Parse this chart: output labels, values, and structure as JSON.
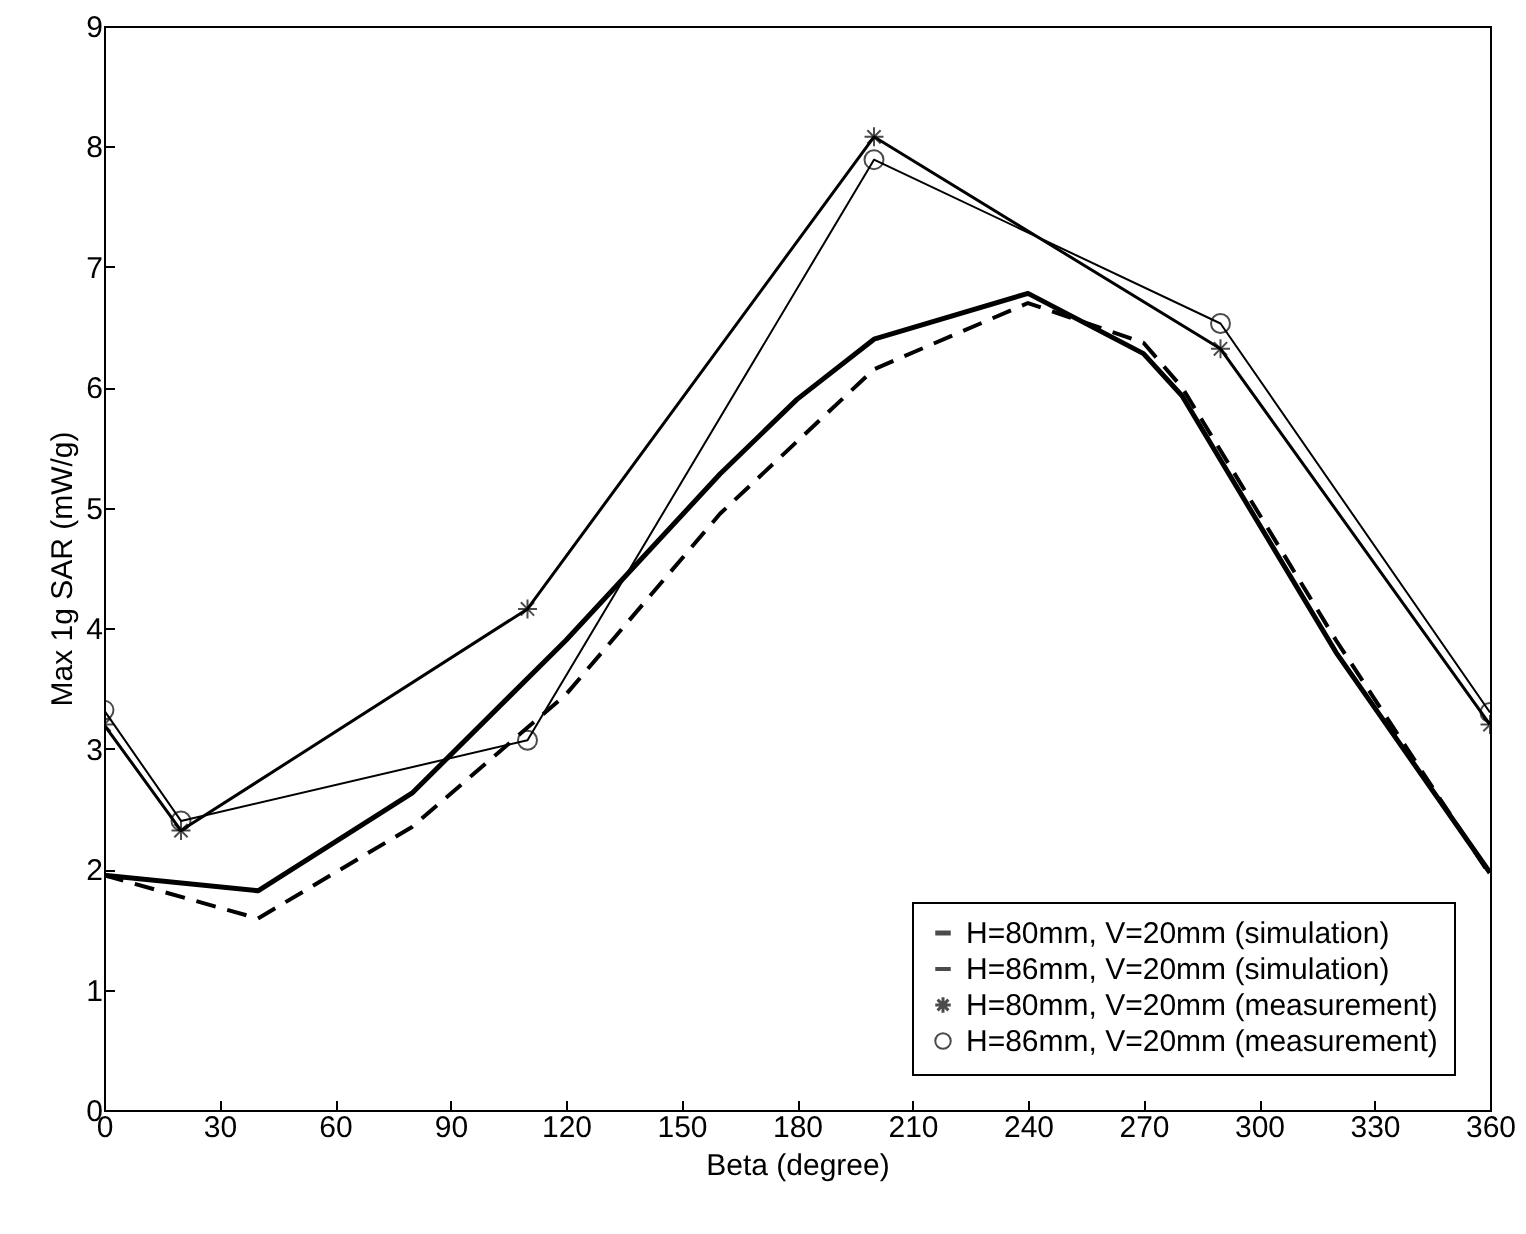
{
  "chart_data": {
    "type": "line",
    "xlabel": "Beta (degree)",
    "ylabel": "Max 1g SAR (mW/g)",
    "xlim": [
      0,
      360
    ],
    "xticks": [
      0,
      30,
      60,
      90,
      120,
      150,
      180,
      210,
      240,
      270,
      300,
      330,
      360
    ],
    "ylim": [
      0,
      9
    ],
    "yticks": [
      0,
      1,
      2,
      3,
      4,
      5,
      6,
      7,
      8,
      9
    ],
    "legend": "bottom right",
    "grid": false,
    "series": [
      {
        "name": "H=80mm, V=20mm (simulation)",
        "color": "#000000",
        "line_style": "solid",
        "marker": "none",
        "x": [
          0,
          40,
          80,
          120,
          160,
          180,
          200,
          240,
          270,
          280,
          320,
          360
        ],
        "values": [
          1.95,
          1.82,
          2.63,
          3.9,
          5.28,
          5.9,
          6.4,
          6.78,
          6.28,
          5.93,
          3.8,
          1.97
        ]
      },
      {
        "name": "H=86mm, V=20mm (simulation)",
        "color": "#000000",
        "line_style": "dashed",
        "marker": "none",
        "x": [
          0,
          40,
          80,
          120,
          160,
          200,
          240,
          270,
          280,
          320,
          360
        ],
        "values": [
          1.95,
          1.59,
          2.35,
          3.45,
          4.95,
          6.15,
          6.7,
          6.37,
          6.0,
          3.9,
          1.95
        ]
      },
      {
        "name": "H=80mm, V=20mm (measurement)",
        "color": "#000000",
        "line_style": "solid",
        "marker": "cross",
        "x": [
          0,
          20,
          110,
          200,
          290,
          360
        ],
        "values": [
          3.2,
          2.32,
          4.16,
          8.08,
          6.32,
          3.2
        ]
      },
      {
        "name": "H=86mm, V=20mm (measurement)",
        "color": "#000000",
        "line_style": "solid",
        "marker": "circle",
        "x": [
          0,
          20,
          110,
          200,
          290,
          360
        ],
        "values": [
          3.32,
          2.4,
          3.07,
          7.89,
          6.53,
          3.3
        ]
      }
    ]
  }
}
